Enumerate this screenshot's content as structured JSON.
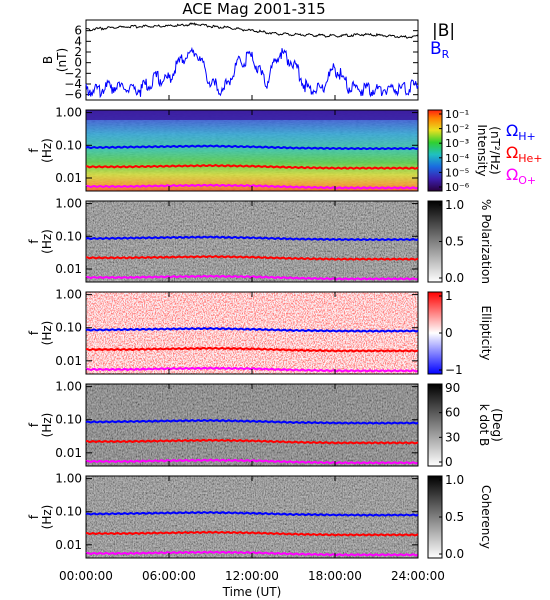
{
  "title": "ACE Mag 2001-315",
  "colors": {
    "b_total": "#000000",
    "b_r": "#0000ff",
    "h_plus": "#0000ff",
    "he_plus": "#ff0000",
    "o_plus": "#ff00ff"
  },
  "chart_data": [
    {
      "id": "magnetic-field",
      "type": "line",
      "ylabel_top": "B",
      "ylabel_bottom": "(nT)",
      "ylim": [
        -7,
        8
      ],
      "yticks": [
        "6",
        "4",
        "2",
        "0",
        "−2",
        "−4",
        "−6"
      ],
      "ytick_values": [
        6,
        4,
        2,
        0,
        -2,
        -4,
        -6
      ],
      "legend": [
        {
          "label": "|B|",
          "color": "#000000"
        },
        {
          "label": "B",
          "subscript": "R",
          "color": "#0000ff"
        }
      ],
      "series": [
        {
          "name": "|B|",
          "x_hours": [
            0,
            2,
            4,
            6,
            7,
            8,
            9,
            10,
            12,
            14,
            16,
            18,
            20,
            22,
            23,
            24
          ],
          "values": [
            6.2,
            6.6,
            6.8,
            6.9,
            7.0,
            7.3,
            6.8,
            6.6,
            6.0,
            5.4,
            5.2,
            5.0,
            5.3,
            5.0,
            4.8,
            5.0
          ]
        },
        {
          "name": "B",
          "x_hours": [
            0,
            1,
            2,
            3,
            4,
            5,
            6,
            7,
            8,
            9,
            10,
            11,
            12,
            13,
            14,
            15,
            16,
            17,
            18,
            19,
            20,
            21,
            22,
            23,
            24
          ],
          "values": [
            -5,
            -5,
            -4.5,
            -5,
            -5,
            -3,
            -3,
            1,
            2,
            -4,
            -5,
            0,
            1,
            -4,
            2,
            0,
            -5,
            -5,
            -1,
            -4.5,
            -5,
            -5,
            -5,
            -5,
            -4
          ]
        }
      ]
    },
    {
      "id": "intensity-spectrogram",
      "type": "heatmap",
      "ylabel_top": "f",
      "ylabel_bottom": "(Hz)",
      "yscale": "log",
      "ylim": [
        0.004,
        1.2
      ],
      "yticks": [
        "1.00",
        "0.10",
        "0.01"
      ],
      "colorbar": {
        "label": "Intensity",
        "unit": "(nT²/Hz)",
        "ticks": [
          "10⁻¹",
          "10⁻²",
          "10⁻³",
          "10⁻⁴",
          "10⁻⁵",
          "10⁻⁶"
        ]
      },
      "gyro_labels": [
        {
          "symbol": "Ω",
          "subscript": "H+",
          "color": "#0000ff"
        },
        {
          "symbol": "Ω",
          "subscript": "He+",
          "color": "#ff0000"
        },
        {
          "symbol": "Ω",
          "subscript": "O+",
          "color": "#ff00ff"
        }
      ]
    },
    {
      "id": "polarization-spectrogram",
      "type": "heatmap",
      "ylabel_top": "f",
      "ylabel_bottom": "(Hz)",
      "yscale": "log",
      "yticks": [
        "1.00",
        "0.10",
        "0.01"
      ],
      "colorbar": {
        "label": "% Polarization",
        "ticks": [
          "1.0",
          "0.5",
          "0.0"
        ]
      }
    },
    {
      "id": "ellipticity-spectrogram",
      "type": "heatmap",
      "ylabel_top": "f",
      "ylabel_bottom": "(Hz)",
      "yscale": "log",
      "yticks": [
        "1.00",
        "0.10",
        "0.01"
      ],
      "colorbar": {
        "label": "Ellipticity",
        "ticks": [
          "1",
          "0",
          "−1"
        ]
      }
    },
    {
      "id": "kdotb-spectrogram",
      "type": "heatmap",
      "ylabel_top": "f",
      "ylabel_bottom": "(Hz)",
      "yscale": "log",
      "yticks": [
        "1.00",
        "0.10",
        "0.01"
      ],
      "colorbar": {
        "label": "k dot B",
        "unit": "(Deg)",
        "ticks": [
          "90",
          "60",
          "30",
          "0"
        ]
      }
    },
    {
      "id": "coherency-spectrogram",
      "type": "heatmap",
      "ylabel_top": "f",
      "ylabel_bottom": "(Hz)",
      "yscale": "log",
      "yticks": [
        "1.00",
        "0.10",
        "0.01"
      ],
      "colorbar": {
        "label": "Coherency",
        "ticks": [
          "1.0",
          "0.5",
          "0.0"
        ]
      }
    }
  ],
  "gyrofrequency_lines": {
    "x_hours": [
      0,
      3,
      6,
      9,
      12,
      15,
      18,
      21,
      24
    ],
    "h_plus": [
      0.085,
      0.088,
      0.092,
      0.095,
      0.09,
      0.083,
      0.08,
      0.079,
      0.08
    ],
    "he_plus": [
      0.022,
      0.022,
      0.023,
      0.024,
      0.023,
      0.021,
      0.02,
      0.02,
      0.02
    ],
    "o_plus": [
      0.0055,
      0.0055,
      0.0058,
      0.006,
      0.0058,
      0.0053,
      0.005,
      0.005,
      0.005
    ]
  },
  "x_axis": {
    "label": "Time (UT)",
    "ticks": [
      "00:00:00",
      "06:00:00",
      "12:00:00",
      "18:00:00",
      "24:00:00"
    ],
    "tick_hours": [
      0,
      6,
      12,
      18,
      24
    ]
  }
}
